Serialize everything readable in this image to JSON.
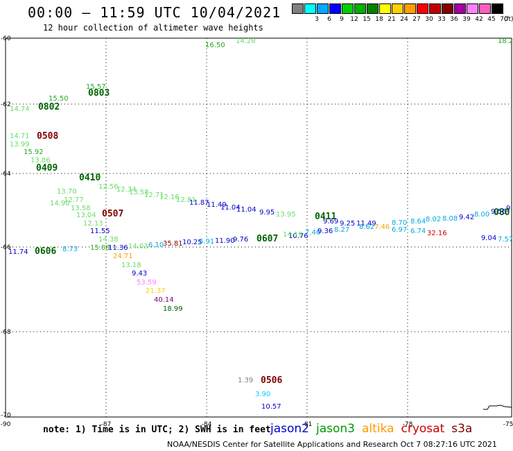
{
  "header": {
    "title": "00:00 – 11:59 UTC 10/04/2021",
    "subtitle": "12 hour collection of altimeter wave heights"
  },
  "legend": {
    "unit": "(ft)",
    "levels": [
      {
        "value": "",
        "color": "#808080"
      },
      {
        "value": "3",
        "color": "#00ffff"
      },
      {
        "value": "6",
        "color": "#00a8ff"
      },
      {
        "value": "9",
        "color": "#0000ff"
      },
      {
        "value": "12",
        "color": "#00d000"
      },
      {
        "value": "15",
        "color": "#00b000"
      },
      {
        "value": "18",
        "color": "#008000"
      },
      {
        "value": "21",
        "color": "#ffff00"
      },
      {
        "value": "24",
        "color": "#ffd000"
      },
      {
        "value": "27",
        "color": "#ffa000"
      },
      {
        "value": "30",
        "color": "#ff0000"
      },
      {
        "value": "33",
        "color": "#c00000"
      },
      {
        "value": "36",
        "color": "#800000"
      },
      {
        "value": "39",
        "color": "#a000a0"
      },
      {
        "value": "42",
        "color": "#ff80ff"
      },
      {
        "value": "45",
        "color": "#ff60c0"
      },
      {
        "value": "70",
        "color": "#000000"
      }
    ]
  },
  "axes": {
    "lon_ticks": [
      "-90",
      "-87",
      "-84",
      "-81",
      "-78",
      "-75"
    ],
    "lat_ticks": [
      "-60",
      "-62",
      "-64",
      "-66",
      "-68",
      "-70"
    ]
  },
  "passes": [
    {
      "id": "0802",
      "color": "#006400"
    },
    {
      "id": "0803",
      "color": "#006400"
    },
    {
      "id": "0508",
      "color": "#800000"
    },
    {
      "id": "0409",
      "color": "#006400"
    },
    {
      "id": "0410",
      "color": "#006400"
    },
    {
      "id": "0507",
      "color": "#800000"
    },
    {
      "id": "0411",
      "color": "#006400"
    },
    {
      "id": "0606",
      "color": "#006400"
    },
    {
      "id": "0607",
      "color": "#006400"
    },
    {
      "id": "0506",
      "color": "#800000"
    },
    {
      "id": "080",
      "color": "#006400"
    }
  ],
  "swh_labels": [
    {
      "text": "14.28",
      "color": "#66dd66"
    },
    {
      "text": "16.50",
      "color": "#22aa22"
    },
    {
      "text": "18.2",
      "color": "#22aa22"
    },
    {
      "text": "15.57",
      "color": "#22aa22"
    },
    {
      "text": "15.50",
      "color": "#22aa22"
    },
    {
      "text": "14.74",
      "color": "#66dd66"
    },
    {
      "text": "14.71",
      "color": "#66dd66"
    },
    {
      "text": "13.99",
      "color": "#66dd66"
    },
    {
      "text": "15.92",
      "color": "#22aa22"
    },
    {
      "text": "13.86",
      "color": "#66dd66"
    },
    {
      "text": "12.56",
      "color": "#66dd66"
    },
    {
      "text": "12.34",
      "color": "#66dd66"
    },
    {
      "text": "13.58",
      "color": "#66dd66"
    },
    {
      "text": "12.71",
      "color": "#66dd66"
    },
    {
      "text": "12.16",
      "color": "#66dd66"
    },
    {
      "text": "12.81",
      "color": "#66dd66"
    },
    {
      "text": "14.90",
      "color": "#66dd66"
    },
    {
      "text": "13.70",
      "color": "#66dd66"
    },
    {
      "text": "12.77",
      "color": "#66dd66"
    },
    {
      "text": "13.58",
      "color": "#66dd66"
    },
    {
      "text": "13.04",
      "color": "#66dd66"
    },
    {
      "text": "12.13",
      "color": "#66dd66"
    },
    {
      "text": "11.55",
      "color": "#0000cc"
    },
    {
      "text": "14.38",
      "color": "#66dd66"
    },
    {
      "text": "15.08",
      "color": "#22aa22"
    },
    {
      "text": "11.36",
      "color": "#0000cc"
    },
    {
      "text": "14.03",
      "color": "#66dd66"
    },
    {
      "text": "6.10",
      "color": "#00aadd"
    },
    {
      "text": "35.81",
      "color": "#800000"
    },
    {
      "text": "10.25",
      "color": "#0000cc"
    },
    {
      "text": "6.91",
      "color": "#00aadd"
    },
    {
      "text": "11.90",
      "color": "#0000cc"
    },
    {
      "text": "9.76",
      "color": "#0000cc"
    },
    {
      "text": "11.87",
      "color": "#0000cc"
    },
    {
      "text": "11.49",
      "color": "#0000cc"
    },
    {
      "text": "11.04",
      "color": "#0000cc"
    },
    {
      "text": "11.04",
      "color": "#0000cc"
    },
    {
      "text": "9.95",
      "color": "#0000cc"
    },
    {
      "text": "13.95",
      "color": "#66dd66"
    },
    {
      "text": "10.76",
      "color": "#0000cc"
    },
    {
      "text": "9.69",
      "color": "#0000cc"
    },
    {
      "text": "9.25",
      "color": "#0000cc"
    },
    {
      "text": "14.19",
      "color": "#66dd66"
    },
    {
      "text": "7.46",
      "color": "#00aadd"
    },
    {
      "text": "9.36",
      "color": "#0000cc"
    },
    {
      "text": "8.27",
      "color": "#00aadd"
    },
    {
      "text": "11.49",
      "color": "#0000cc"
    },
    {
      "text": "8.62",
      "color": "#00aadd"
    },
    {
      "text": "7.46",
      "color": "#ffa000"
    },
    {
      "text": "8.70",
      "color": "#00aadd"
    },
    {
      "text": "8.64",
      "color": "#00aadd"
    },
    {
      "text": "6.97",
      "color": "#00aadd"
    },
    {
      "text": "6.74",
      "color": "#00aadd"
    },
    {
      "text": "8.02",
      "color": "#00aadd"
    },
    {
      "text": "8.08",
      "color": "#00aadd"
    },
    {
      "text": "32.16",
      "color": "#cc0000"
    },
    {
      "text": "9.42",
      "color": "#0000cc"
    },
    {
      "text": "8.00",
      "color": "#00aadd"
    },
    {
      "text": "9.56",
      "color": "#0000cc"
    },
    {
      "text": "9.1",
      "color": "#0000cc"
    },
    {
      "text": "9.04",
      "color": "#0000cc"
    },
    {
      "text": "7.57",
      "color": "#00aadd"
    },
    {
      "text": "11.74",
      "color": "#0000cc"
    },
    {
      "text": "8.73",
      "color": "#00aadd"
    },
    {
      "text": "24.71",
      "color": "#ffa000"
    },
    {
      "text": "13.18",
      "color": "#66dd66"
    },
    {
      "text": "9.43",
      "color": "#0000cc"
    },
    {
      "text": "53.59",
      "color": "#ff80ff"
    },
    {
      "text": "21.37",
      "color": "#ffd000"
    },
    {
      "text": "40.14",
      "color": "#800080"
    },
    {
      "text": "18.99",
      "color": "#006400"
    },
    {
      "text": "1.39",
      "color": "#808080"
    },
    {
      "text": "3.90",
      "color": "#00ccff"
    },
    {
      "text": "10.57",
      "color": "#0000cc"
    }
  ],
  "footer": {
    "note": "note: 1) Time is in UTC; 2) SWH is in feet",
    "satellites": [
      {
        "name": "jason2",
        "color": "#0000cc"
      },
      {
        "name": "jason3",
        "color": "#009900"
      },
      {
        "name": "altika",
        "color": "#ff9900"
      },
      {
        "name": "cryosat",
        "color": "#cc0000"
      },
      {
        "name": "s3a",
        "color": "#800000"
      }
    ],
    "credit": "NOAA/NESDIS Center for Satellite Applications and Research    Oct  7 08:27:16 UTC 2021"
  }
}
